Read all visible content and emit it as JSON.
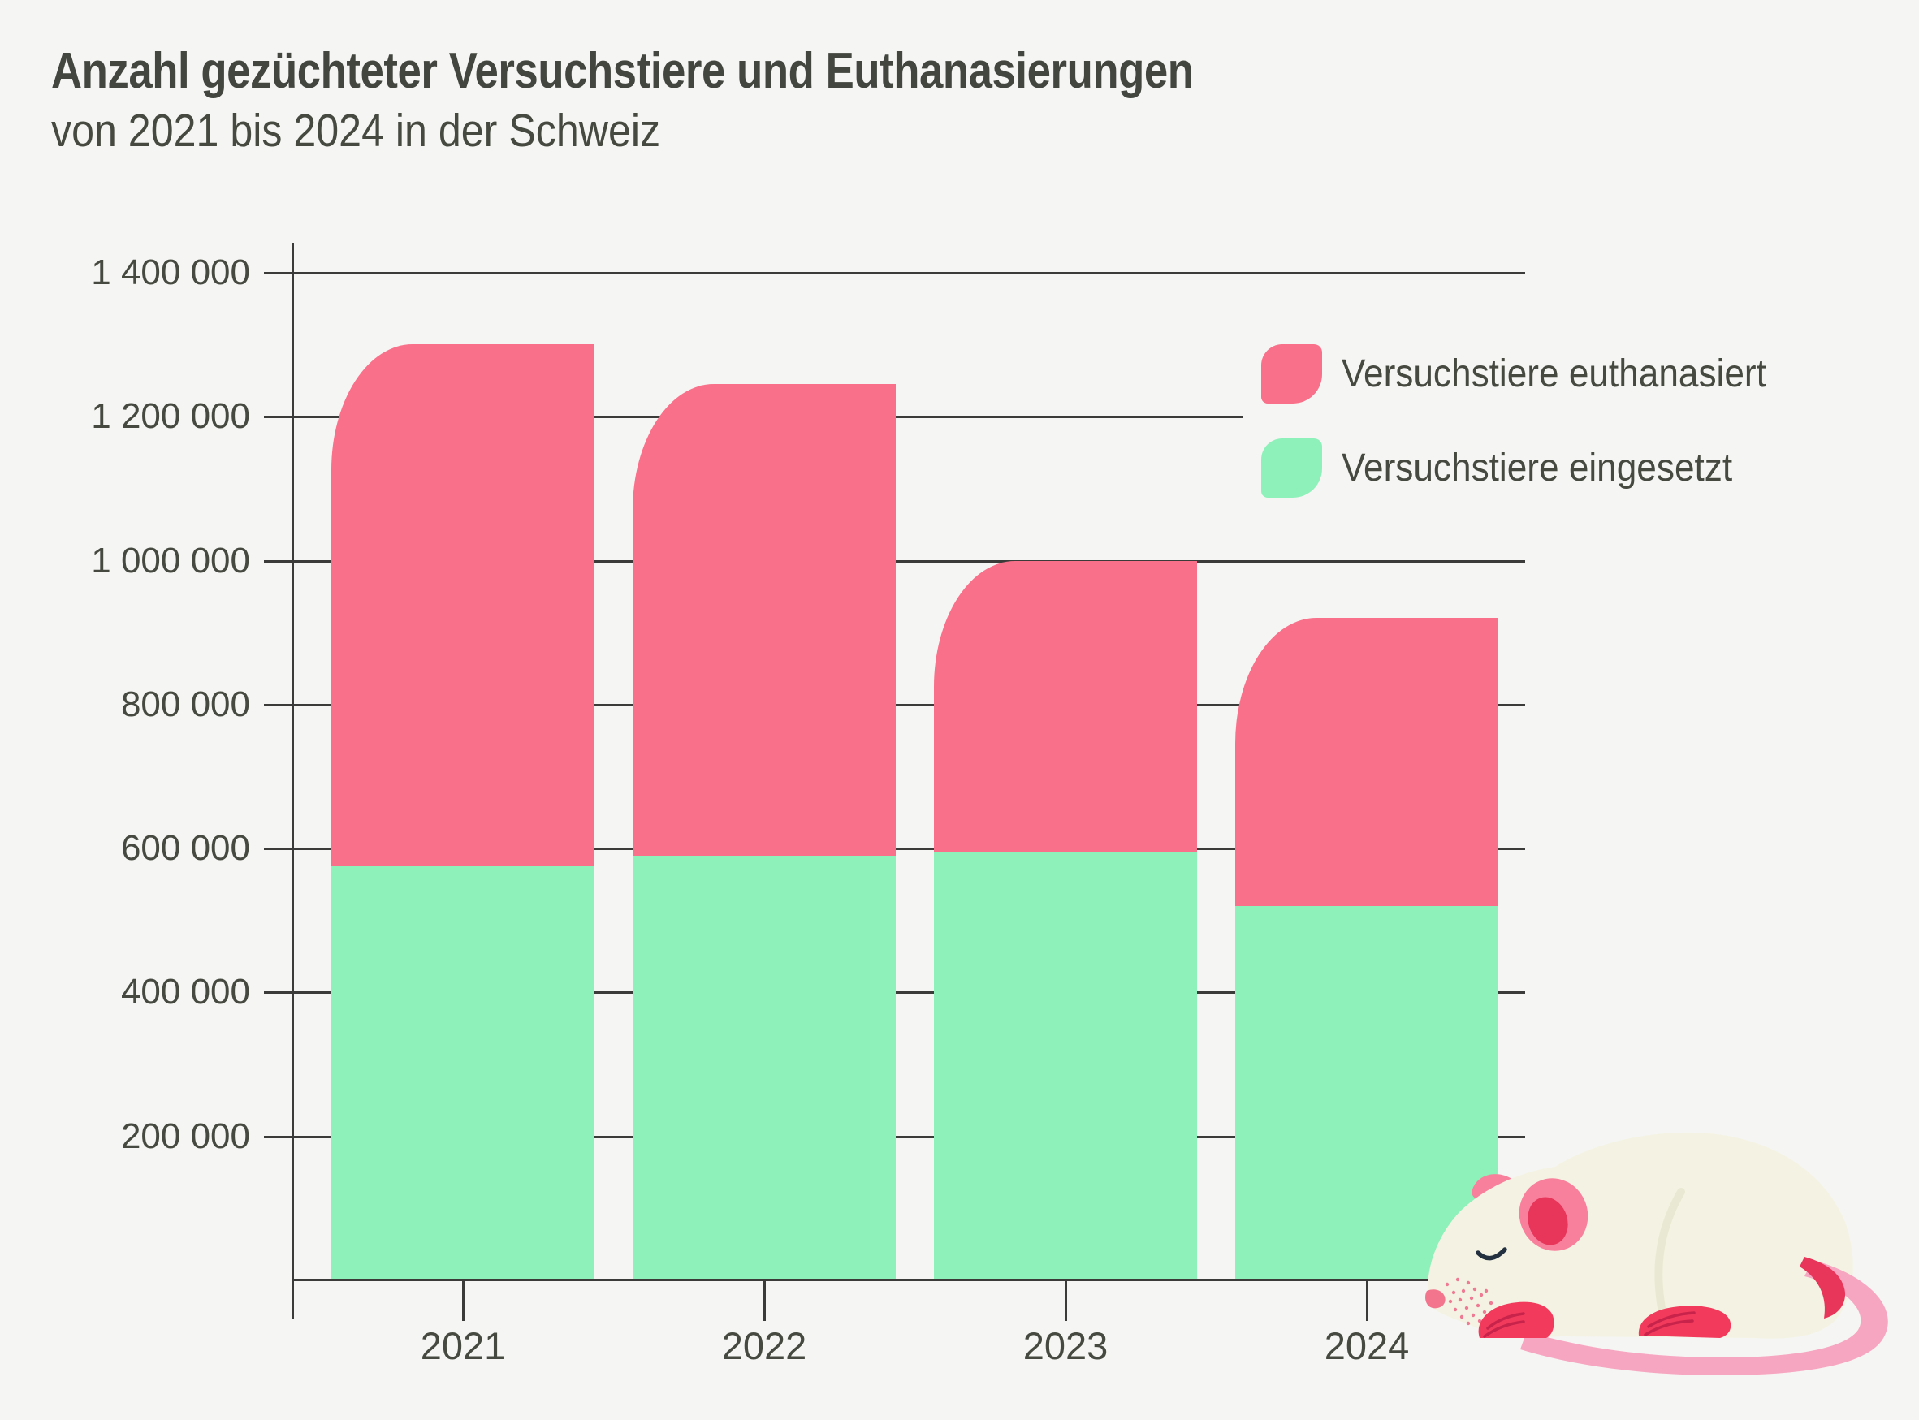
{
  "chart_data": {
    "type": "bar",
    "subtype": "stacked-bar",
    "title": "Anzahl gezüchteter Versuchstiere und Euthanasierungen",
    "subtitle": "von 2021 bis 2024 in der Schweiz",
    "categories": [
      "2021",
      "2022",
      "2023",
      "2024"
    ],
    "series": [
      {
        "name": "Versuchstiere eingesetzt",
        "color": "#8FF1BA",
        "stack_position": "bottom",
        "values": [
          575000,
          590000,
          595000,
          520000
        ]
      },
      {
        "name": "Versuchstiere euthanasiert",
        "color": "#F9708A",
        "stack_position": "top",
        "values": [
          725000,
          655000,
          405000,
          400000
        ]
      }
    ],
    "stack_totals": [
      1300000,
      1245000,
      1000000,
      920000
    ],
    "xlabel": "",
    "ylabel": "",
    "ylim": [
      0,
      1400000
    ],
    "ytick_step": 200000,
    "yticks": [
      {
        "value": 200000,
        "label": "200 000"
      },
      {
        "value": 400000,
        "label": "400 000"
      },
      {
        "value": 600000,
        "label": "600 000"
      },
      {
        "value": 800000,
        "label": "800 000"
      },
      {
        "value": 1000000,
        "label": "1 000 000"
      },
      {
        "value": 1200000,
        "label": "1 200 000"
      },
      {
        "value": 1400000,
        "label": "1 400 000"
      }
    ],
    "grid": true,
    "legend_position": "upper right",
    "legend_order": [
      "Versuchstiere euthanasiert",
      "Versuchstiere eingesetzt"
    ]
  },
  "colors": {
    "background": "#F5F5F3",
    "title_text": "#42463F",
    "text": "#45493F",
    "axis": "#3B3B39"
  },
  "illustration": {
    "name": "sleeping-white-lab-mouse",
    "body": "#F4F3E3",
    "shade": "#E9E9D3",
    "ear_outer": "#F8809C",
    "ear_inner": "#E8355A",
    "paw": "#F23B5C",
    "paw_line": "#C8234A",
    "tail": "#F7A6C1",
    "tail_base": "#E8355A",
    "eye": "#22303F",
    "nose": "#F2758D",
    "speckle": "#EE7A93"
  }
}
